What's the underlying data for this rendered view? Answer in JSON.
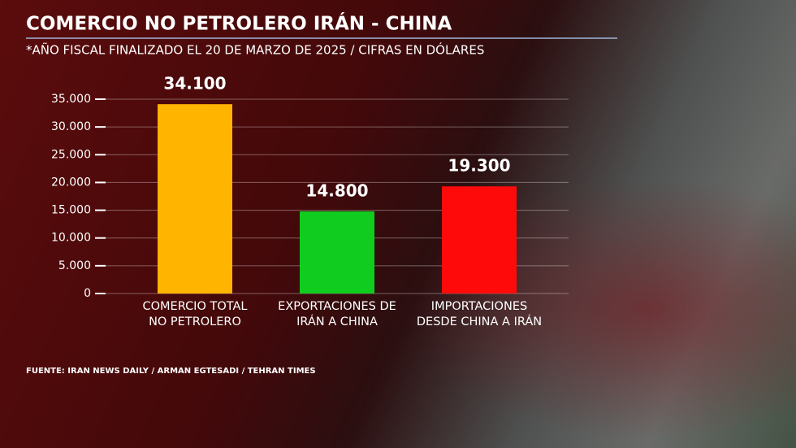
{
  "chart_data": {
    "type": "bar",
    "title": "COMERCIO NO PETROLERO IRÁN - CHINA",
    "subtitle": "*AÑO FISCAL FINALIZADO EL 20 DE MARZO DE 2025 / CIFRAS EN DÓLARES",
    "source": "FUENTE: IRAN NEWS DAILY / ARMAN EGTESADI / TEHRAN TIMES",
    "categories": [
      "COMERCIO TOTAL\nNO PETROLERO",
      "EXPORTACIONES DE\nIRÁN A CHINA",
      "IMPORTACIONES\nDESDE CHINA A IRÁN"
    ],
    "values": [
      34100,
      14800,
      19300
    ],
    "value_labels": [
      "34.100",
      "14.800",
      "19.300"
    ],
    "colors": [
      "#ffb400",
      "#0fcc1f",
      "#ff0a0a"
    ],
    "ylim": [
      0,
      35000
    ],
    "yticks": [
      0,
      {
        "value": 5000,
        "label": "5.000"
      },
      {
        "value": 10000,
        "label": "10.000"
      },
      {
        "value": 15000,
        "label": "15.000"
      },
      {
        "value": 20000,
        "label": "20.000"
      },
      {
        "value": 25000,
        "label": "25.000"
      },
      {
        "value": 30000,
        "label": "30.000"
      },
      {
        "value": 35000,
        "label": "35.000"
      }
    ],
    "grid": true
  }
}
